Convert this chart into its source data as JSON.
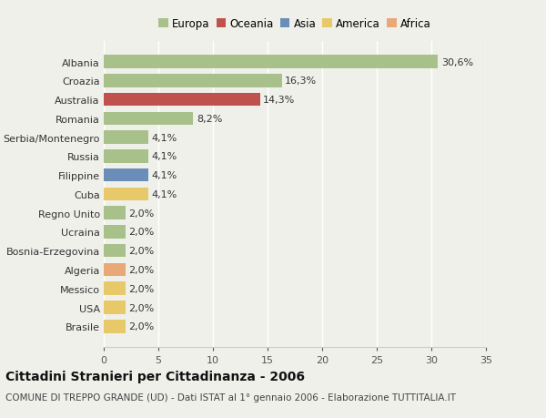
{
  "countries": [
    "Albania",
    "Croazia",
    "Australia",
    "Romania",
    "Serbia/Montenegro",
    "Russia",
    "Filippine",
    "Cuba",
    "Regno Unito",
    "Ucraina",
    "Bosnia-Erzegovina",
    "Algeria",
    "Messico",
    "USA",
    "Brasile"
  ],
  "values": [
    30.6,
    16.3,
    14.3,
    8.2,
    4.1,
    4.1,
    4.1,
    4.1,
    2.0,
    2.0,
    2.0,
    2.0,
    2.0,
    2.0,
    2.0
  ],
  "labels": [
    "30,6%",
    "16,3%",
    "14,3%",
    "8,2%",
    "4,1%",
    "4,1%",
    "4,1%",
    "4,1%",
    "2,0%",
    "2,0%",
    "2,0%",
    "2,0%",
    "2,0%",
    "2,0%",
    "2,0%"
  ],
  "continents": [
    "Europa",
    "Europa",
    "Oceania",
    "Europa",
    "Europa",
    "Europa",
    "Asia",
    "America",
    "Europa",
    "Europa",
    "Europa",
    "Africa",
    "America",
    "America",
    "America"
  ],
  "continent_colors": {
    "Europa": "#a8c18a",
    "Oceania": "#c0524e",
    "Asia": "#6a8eb8",
    "America": "#e8c96a",
    "Africa": "#e8a878"
  },
  "legend_order": [
    "Europa",
    "Oceania",
    "Asia",
    "America",
    "Africa"
  ],
  "xlim": [
    0,
    35
  ],
  "xticks": [
    0,
    5,
    10,
    15,
    20,
    25,
    30,
    35
  ],
  "title": "Cittadini Stranieri per Cittadinanza - 2006",
  "subtitle": "COMUNE DI TREPPO GRANDE (UD) - Dati ISTAT al 1° gennaio 2006 - Elaborazione TUTTITALIA.IT",
  "background_color": "#f0f0eb",
  "bar_height": 0.7,
  "grid_color": "#ffffff",
  "title_fontsize": 10,
  "subtitle_fontsize": 7.5,
  "tick_fontsize": 8,
  "label_fontsize": 8
}
